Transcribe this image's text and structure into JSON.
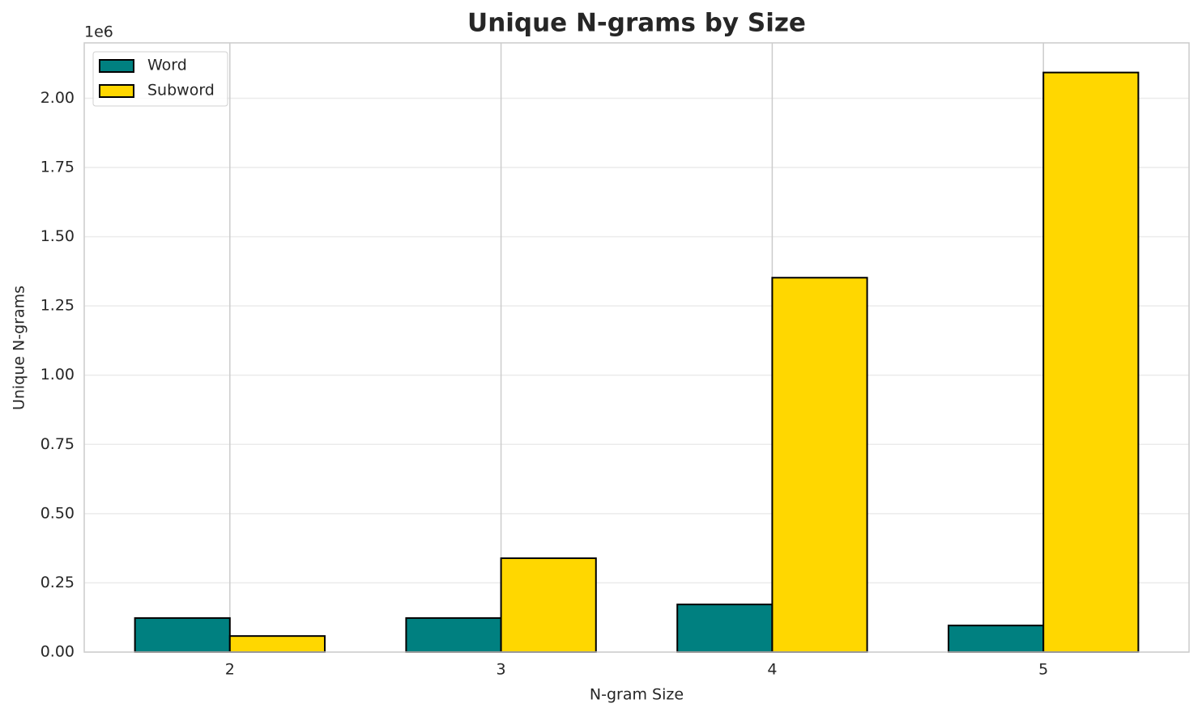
{
  "chart_data": {
    "type": "bar",
    "title": "Unique N-grams by Size",
    "x_label": "N-gram Size",
    "y_label": "Unique N-grams",
    "y_offset_label": "1e6",
    "categories": [
      "2",
      "3",
      "4",
      "5"
    ],
    "series": [
      {
        "name": "Word",
        "color": "#008080",
        "values": [
          123000,
          123000,
          172000,
          96000
        ]
      },
      {
        "name": "Subword",
        "color": "#ffd700",
        "values": [
          58000,
          339000,
          1352000,
          2093000
        ]
      }
    ],
    "ylim": [
      0,
      2200000
    ],
    "yticks": [
      {
        "value": 0,
        "label": "0.00"
      },
      {
        "value": 250000,
        "label": "0.25"
      },
      {
        "value": 500000,
        "label": "0.50"
      },
      {
        "value": 750000,
        "label": "0.75"
      },
      {
        "value": 1000000,
        "label": "1.00"
      },
      {
        "value": 1250000,
        "label": "1.25"
      },
      {
        "value": 1500000,
        "label": "1.50"
      },
      {
        "value": 1750000,
        "label": "1.75"
      },
      {
        "value": 2000000,
        "label": "2.00"
      }
    ],
    "grid": true,
    "legend": "upper left"
  }
}
